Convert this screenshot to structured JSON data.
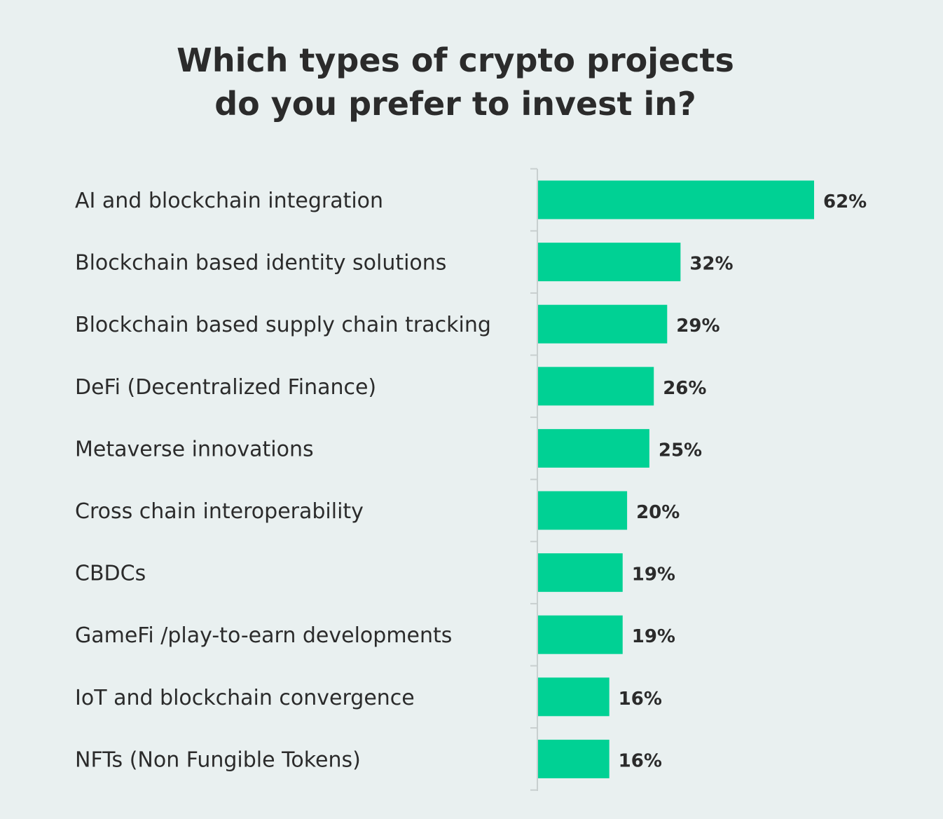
{
  "chart_data": {
    "type": "bar",
    "orientation": "horizontal",
    "title_lines": [
      "Which types of crypto projects",
      "do you prefer to invest in?"
    ],
    "categories": [
      "AI and blockchain integration",
      "Blockchain based identity solutions",
      "Blockchain based supply chain tracking",
      "DeFi (Decentralized Finance)",
      "Metaverse innovations",
      "Cross chain interoperability",
      "CBDCs",
      "GameFi /play-to-earn developments",
      "IoT and blockchain convergence",
      "NFTs (Non Fungible Tokens)"
    ],
    "values": [
      62,
      32,
      29,
      26,
      25,
      20,
      19,
      19,
      16,
      16
    ],
    "data_labels": [
      "62%",
      "32%",
      "29%",
      "26%",
      "25%",
      "20%",
      "19%",
      "19%",
      "16%",
      "16%"
    ],
    "unit": "%",
    "xlim": [
      0,
      100
    ],
    "grid": false,
    "legend": "none",
    "colors": {
      "bar": "#00d194",
      "text": "#2b2b2b",
      "axis": "#c8cfcf",
      "background": "#e9f0f0"
    }
  }
}
